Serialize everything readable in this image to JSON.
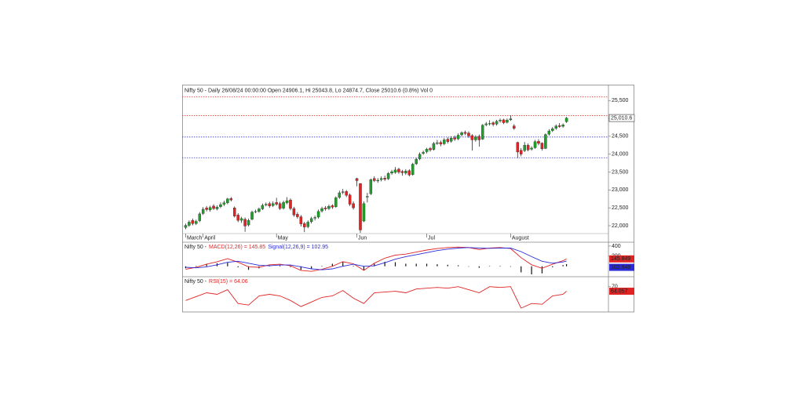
{
  "chart_data": [
    {
      "type": "candlestick",
      "title": "Nifty 50 - Daily 26/08/24 00:00:00 Open 24906.1, Hi 25043.8, Lo 24874.7, Close 25010.6 (0.8%) Vol 0",
      "xlim": [
        -1,
        121
      ],
      "xticks": [
        {
          "value": 0,
          "label": "March"
        },
        {
          "value": 5,
          "label": "April"
        },
        {
          "value": 26,
          "label": "May"
        },
        {
          "value": 49,
          "label": "Jun"
        },
        {
          "value": 69,
          "label": "Jul"
        },
        {
          "value": 93,
          "label": "August"
        }
      ],
      "ylim": [
        21780,
        25900
      ],
      "yticks": [
        {
          "value": 22000,
          "label": "22,000"
        },
        {
          "value": 22500,
          "label": "22,500"
        },
        {
          "value": 23000,
          "label": "23,000"
        },
        {
          "value": 23500,
          "label": "23,500"
        },
        {
          "value": 24000,
          "label": "24,000"
        },
        {
          "value": 24500,
          "label": "24,500"
        },
        {
          "value": 25000,
          "label": "25,000"
        },
        {
          "value": 25500,
          "label": "25,500"
        }
      ],
      "up_color": "#1f9e2a",
      "down_color": "#e02424",
      "levels": [
        {
          "value": 25600,
          "color": "#e8403a"
        },
        {
          "value": 25080,
          "color": "#e8403a"
        },
        {
          "value": 24480,
          "color": "#3a3ad0"
        },
        {
          "value": 23900,
          "color": "#3a3ad0"
        }
      ],
      "last_price": {
        "value": 25010.6,
        "label": "25,010.6"
      },
      "open": [
        21950,
        22010,
        22150,
        22060,
        22140,
        22340,
        22500,
        22440,
        22550,
        22470,
        22530,
        22600,
        22640,
        22760,
        22500,
        22300,
        22150,
        22180,
        22020,
        22180,
        22390,
        22400,
        22470,
        22580,
        22620,
        22560,
        22650,
        22620,
        22490,
        22640,
        22720,
        22480,
        22320,
        22250,
        22060,
        21970,
        22110,
        22210,
        22240,
        22410,
        22500,
        22480,
        22560,
        22530,
        22790,
        22930,
        22960,
        22860,
        22620,
        23320,
        23180,
        22130,
        22800,
        22890,
        23320,
        23250,
        23290,
        23330,
        23310,
        23470,
        23490,
        23580,
        23520,
        23470,
        23540,
        23430,
        23730,
        23870,
        24020,
        24070,
        24160,
        24130,
        24300,
        24330,
        24290,
        24420,
        24360,
        24460,
        24430,
        24540,
        24610,
        24590,
        24520,
        24400,
        24500,
        24420,
        24820,
        24860,
        24880,
        24840,
        24930,
        24960,
        24890,
        24960,
        24790,
        24330,
        24110,
        24100,
        24250,
        24140,
        24180,
        24360,
        24310,
        24160,
        24560,
        24660,
        24720,
        24800,
        24780,
        24906.1
      ],
      "high": [
        22060,
        22150,
        22200,
        22170,
        22380,
        22520,
        22550,
        22560,
        22600,
        22570,
        22650,
        22700,
        22780,
        22800,
        22540,
        22350,
        22250,
        22230,
        22200,
        22420,
        22450,
        22510,
        22620,
        22650,
        22670,
        22680,
        22780,
        22670,
        22700,
        22800,
        22760,
        22530,
        22380,
        22300,
        22110,
        22150,
        22250,
        22280,
        22450,
        22530,
        22550,
        22590,
        22600,
        22820,
        22980,
        23030,
        23000,
        22900,
        22680,
        23340,
        23190,
        22680,
        22920,
        23320,
        23380,
        23330,
        23380,
        23400,
        23500,
        23560,
        23640,
        23620,
        23560,
        23580,
        23580,
        23760,
        23900,
        24050,
        24100,
        24180,
        24200,
        24340,
        24400,
        24380,
        24450,
        24470,
        24500,
        24520,
        24580,
        24640,
        24660,
        24640,
        24560,
        24530,
        24550,
        24840,
        24900,
        24950,
        24920,
        24960,
        25000,
        24990,
        25000,
        25080,
        24840,
        24350,
        24170,
        24340,
        24300,
        24220,
        24400,
        24420,
        24330,
        24580,
        24700,
        24760,
        24830,
        24870,
        24860,
        25043.8
      ],
      "low": [
        21900,
        21970,
        22010,
        22020,
        22100,
        22300,
        22400,
        22390,
        22440,
        22430,
        22490,
        22550,
        22600,
        22680,
        22230,
        22100,
        22080,
        21830,
        21980,
        22150,
        22350,
        22360,
        22440,
        22540,
        22500,
        22520,
        22560,
        22440,
        22450,
        22600,
        22430,
        22250,
        22200,
        21980,
        21820,
        21930,
        22060,
        22150,
        22200,
        22370,
        22420,
        22440,
        22470,
        22500,
        22750,
        22880,
        22800,
        22550,
        22450,
        23100,
        21800,
        22100,
        22650,
        22860,
        23220,
        23200,
        23240,
        23250,
        23280,
        23420,
        23450,
        23450,
        23400,
        23420,
        23380,
        23400,
        23700,
        23830,
        23980,
        24020,
        24070,
        24100,
        24260,
        24220,
        24250,
        24300,
        24320,
        24370,
        24390,
        24500,
        24530,
        24460,
        24100,
        24350,
        24210,
        24400,
        24780,
        24800,
        24780,
        24800,
        24880,
        24840,
        24860,
        24930,
        24680,
        23890,
        23940,
        24060,
        24080,
        24100,
        24150,
        24250,
        24100,
        24140,
        24520,
        24620,
        24680,
        24740,
        24740,
        24874.7
      ],
      "close": [
        22010,
        22100,
        22060,
        22120,
        22330,
        22460,
        22450,
        22510,
        22480,
        22520,
        22590,
        22640,
        22750,
        22720,
        22270,
        22150,
        22200,
        21990,
        22150,
        22380,
        22400,
        22470,
        22570,
        22600,
        22550,
        22620,
        22600,
        22480,
        22650,
        22700,
        22480,
        22300,
        22250,
        22050,
        21960,
        22100,
        22200,
        22230,
        22400,
        22480,
        22470,
        22540,
        22520,
        22780,
        22920,
        22950,
        22850,
        22600,
        22500,
        23260,
        21880,
        22620,
        22820,
        23290,
        23260,
        23270,
        23320,
        23300,
        23460,
        23510,
        23560,
        23500,
        23480,
        23530,
        23420,
        23720,
        23860,
        24000,
        24050,
        24140,
        24120,
        24300,
        24320,
        24280,
        24400,
        24350,
        24450,
        24420,
        24530,
        24600,
        24580,
        24510,
        24400,
        24480,
        24400,
        24810,
        24850,
        24860,
        24830,
        24920,
        24950,
        24880,
        24950,
        24990,
        24720,
        24060,
        24000,
        24250,
        24120,
        24170,
        24350,
        24300,
        24150,
        24550,
        24650,
        24710,
        24790,
        24770,
        24820,
        25010.6
      ]
    },
    {
      "type": "macd",
      "label_prefix": "Nifty 50 -",
      "xlim": [
        -1,
        121
      ],
      "x": [
        0,
        3,
        6,
        9,
        12,
        15,
        18,
        21,
        24,
        27,
        30,
        33,
        36,
        39,
        42,
        45,
        48,
        51,
        54,
        57,
        60,
        63,
        66,
        69,
        72,
        75,
        78,
        81,
        84,
        87,
        90,
        93,
        96,
        99,
        102,
        105,
        108,
        109
      ],
      "ylim": [
        -190,
        460
      ],
      "yticks": [
        200,
        400
      ],
      "series": [
        {
          "name": "MACD(12,26) = 145.85",
          "color": "#e02424",
          "last": 145.849,
          "values": [
            -60,
            -20,
            40,
            90,
            150,
            80,
            -10,
            -20,
            30,
            40,
            10,
            -80,
            -100,
            -60,
            0,
            90,
            50,
            -80,
            60,
            160,
            220,
            240,
            280,
            320,
            350,
            370,
            380,
            370,
            330,
            360,
            370,
            350,
            170,
            30,
            -40,
            40,
            110,
            145.85
          ]
        },
        {
          "name": "Signal(12,26,9) = 102.95",
          "color": "#2a2ad8",
          "last": 102.949,
          "values": [
            -20,
            -30,
            -10,
            30,
            80,
            100,
            60,
            20,
            10,
            25,
            25,
            -10,
            -50,
            -70,
            -50,
            0,
            40,
            0,
            10,
            70,
            140,
            190,
            230,
            270,
            310,
            340,
            360,
            370,
            360,
            355,
            360,
            360,
            290,
            190,
            100,
            60,
            85,
            102.95
          ]
        }
      ],
      "histogram": {
        "color": "#111111",
        "values": [
          -40,
          10,
          50,
          60,
          70,
          -20,
          -70,
          -40,
          20,
          15,
          -15,
          -70,
          -50,
          10,
          50,
          90,
          10,
          -80,
          50,
          90,
          80,
          50,
          50,
          50,
          40,
          30,
          20,
          0,
          -30,
          5,
          10,
          -10,
          -120,
          -160,
          -140,
          -20,
          25,
          42.9
        ]
      }
    },
    {
      "type": "line",
      "label_prefix": "Nifty 50 -",
      "xlim": [
        -1,
        121
      ],
      "x": [
        0,
        3,
        6,
        9,
        12,
        15,
        18,
        21,
        24,
        27,
        30,
        33,
        36,
        39,
        42,
        45,
        48,
        51,
        54,
        57,
        60,
        63,
        66,
        69,
        72,
        75,
        78,
        81,
        84,
        87,
        90,
        93,
        96,
        99,
        102,
        105,
        108,
        109
      ],
      "ylim": [
        38,
        82
      ],
      "yticks": [
        70
      ],
      "series": [
        {
          "name": "RSI(15) = 64.06",
          "color": "#e02424",
          "last": 64.057,
          "values": [
            52,
            57,
            62,
            60,
            66,
            48,
            46,
            58,
            60,
            58,
            52,
            44,
            50,
            56,
            58,
            65,
            55,
            48,
            62,
            63,
            64,
            62,
            67,
            68,
            69,
            68,
            70,
            66,
            62,
            70,
            69,
            70,
            42,
            48,
            47,
            58,
            60,
            64.06
          ]
        }
      ]
    }
  ]
}
